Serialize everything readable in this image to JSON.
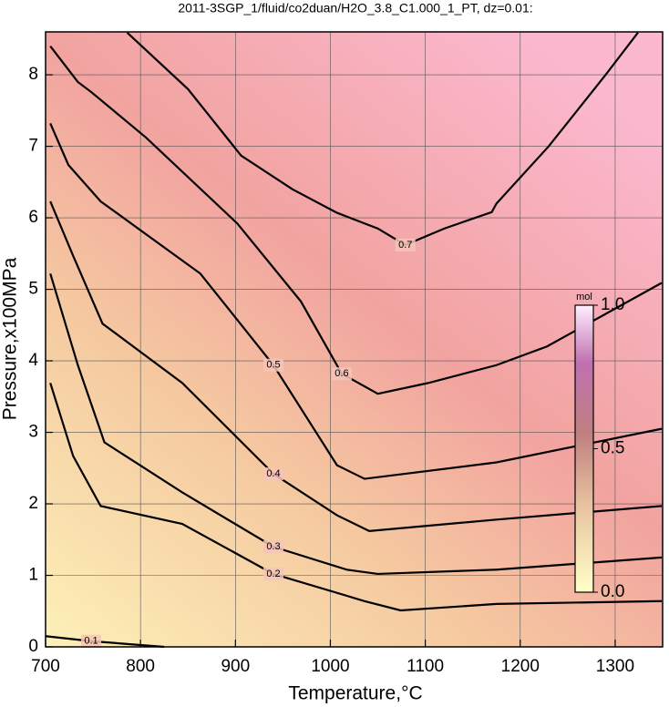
{
  "chart_data": {
    "type": "contour",
    "title": "2011-3SGP_1/fluid/co2duan/H2O_3.8_C1.000_1_PT, dz=0.01:",
    "x_label": "Temperature,°C",
    "y_label": "Pressure,x100MPa",
    "xlim": [
      700,
      1350
    ],
    "ylim": [
      0,
      8.6
    ],
    "xticks": [
      700,
      800,
      900,
      1000,
      1100,
      1200,
      1300
    ],
    "yticks": [
      0,
      1,
      2,
      3,
      4,
      5,
      6,
      7,
      8
    ],
    "grid": true,
    "contours": [
      {
        "level": 0.1,
        "x": [
          700,
          748,
          825
        ],
        "y": [
          0.15,
          0.08,
          0
        ]
      },
      {
        "level": 0.2,
        "x": [
          705,
          729,
          758,
          844,
          940,
          1036,
          1074,
          1175,
          1349
        ],
        "y": [
          3.69,
          2.67,
          1.97,
          1.72,
          1.02,
          0.64,
          0.51,
          0.6,
          0.64
        ]
      },
      {
        "level": 0.3,
        "x": [
          705,
          734,
          762,
          844,
          940,
          1017,
          1050,
          1175,
          1349
        ],
        "y": [
          5.22,
          3.94,
          2.86,
          2.16,
          1.4,
          1.08,
          1.02,
          1.08,
          1.25
        ]
      },
      {
        "level": 0.4,
        "x": [
          705,
          729,
          760,
          844,
          940,
          1007,
          1041,
          1175,
          1349
        ],
        "y": [
          6.23,
          5.47,
          4.52,
          3.69,
          2.42,
          1.84,
          1.62,
          1.78,
          1.97
        ]
      },
      {
        "level": 0.5,
        "x": [
          705,
          724,
          758,
          863,
          940,
          1007,
          1036,
          1175,
          1349
        ],
        "y": [
          7.32,
          6.74,
          6.23,
          5.22,
          3.94,
          2.54,
          2.35,
          2.58,
          3.05
        ]
      },
      {
        "level": 0.6,
        "x": [
          705,
          734,
          748,
          806,
          902,
          969,
          1012,
          1050,
          1103,
          1175,
          1228,
          1349
        ],
        "y": [
          8.4,
          7.9,
          7.76,
          7.12,
          5.92,
          4.83,
          3.82,
          3.54,
          3.69,
          3.94,
          4.2,
          5.09
        ]
      },
      {
        "level": 0.7,
        "x": [
          786,
          850,
          906,
          960,
          1007,
          1050,
          1079,
          1120,
          1170,
          1175,
          1230,
          1290,
          1324
        ],
        "y": [
          8.59,
          7.8,
          6.87,
          6.4,
          6.07,
          5.85,
          5.62,
          5.85,
          6.08,
          6.2,
          7.0,
          8.0,
          8.59
        ]
      }
    ],
    "line_color": "#000000",
    "colorbar": {
      "label": "mol",
      "lim": [
        0,
        1
      ],
      "ticks": [
        {
          "value": 0,
          "label": "0.0"
        },
        {
          "value": 0.5,
          "label": "0.5"
        },
        {
          "value": 1,
          "label": "1.0"
        }
      ]
    }
  }
}
